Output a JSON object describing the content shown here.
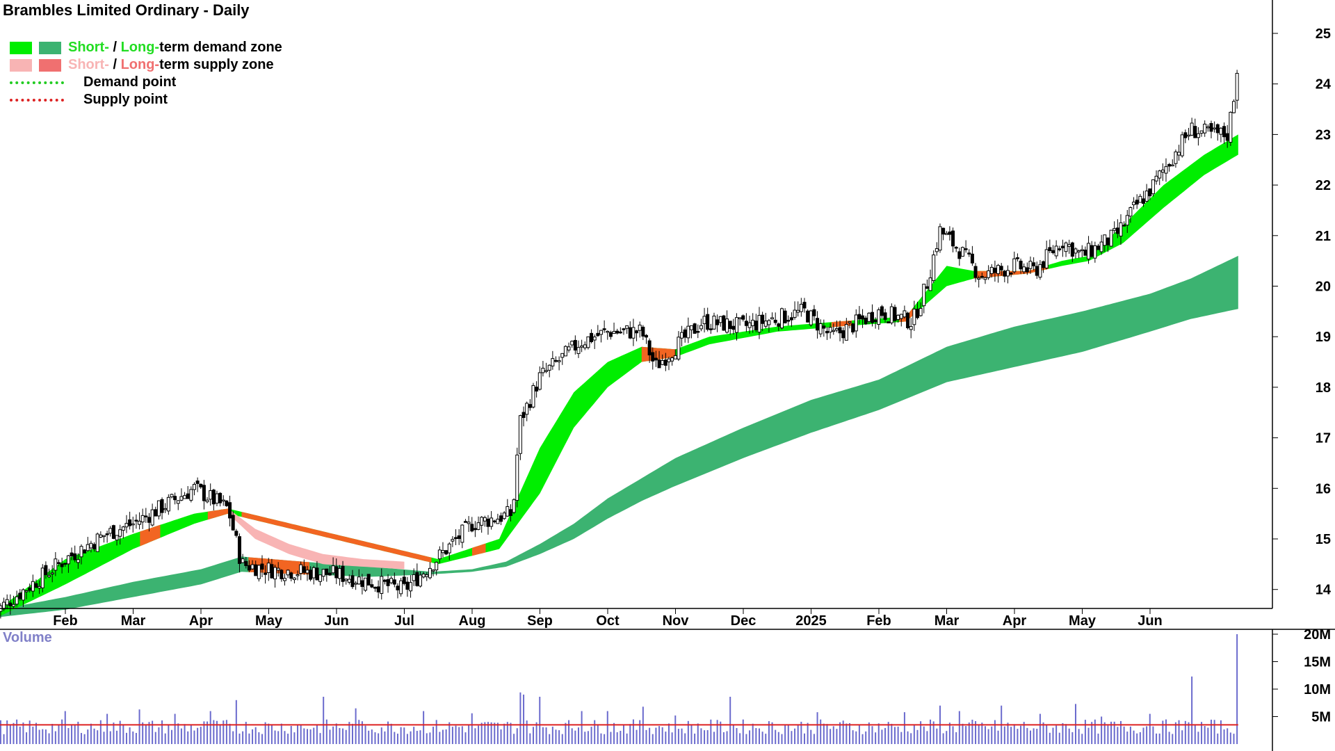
{
  "title": "Brambles Limited Ordinary - Daily",
  "legend": {
    "demand_zone": {
      "short": "Short-",
      "sep": " / ",
      "long": "Long-",
      "rest": "term demand zone"
    },
    "supply_zone": {
      "short": "Short-",
      "sep": " / ",
      "long": "Long-",
      "rest": "term supply zone"
    },
    "demand_point": "Demand point",
    "supply_point": "Supply point"
  },
  "volume_label": "Volume",
  "colors": {
    "short_demand": "#00ee00",
    "long_demand": "#3cb371",
    "short_supply": "#f8b4b4",
    "long_supply": "#f07070",
    "transition": "#f26522",
    "demand_point": "#22cc22",
    "supply_point": "#dd2222",
    "volume_bar": "#6a6acd",
    "volume_avg": "#dd2222"
  },
  "chart_data": [
    {
      "type": "candlestick",
      "title": "Brambles Limited Ordinary - Daily",
      "x_tick_labels": [
        "Feb",
        "Mar",
        "Apr",
        "May",
        "Jun",
        "Jul",
        "Aug",
        "Sep",
        "Oct",
        "Nov",
        "Dec",
        "2025",
        "Feb",
        "Mar",
        "Apr",
        "May",
        "Jun"
      ],
      "y_ticks": [
        14,
        15,
        16,
        17,
        18,
        19,
        20,
        21,
        22,
        23,
        24,
        25
      ],
      "ylim": [
        13.4,
        25.3
      ],
      "grid": false,
      "legend_position": "top-left",
      "close_anchors": [
        {
          "x": 0,
          "y": 13.6
        },
        {
          "x": 1,
          "y": 14.6
        },
        {
          "x": 1.6,
          "y": 15.1
        },
        {
          "x": 2.0,
          "y": 15.3
        },
        {
          "x": 2.9,
          "y": 16.0
        },
        {
          "x": 3.4,
          "y": 15.6
        },
        {
          "x": 3.6,
          "y": 14.5
        },
        {
          "x": 4.0,
          "y": 14.4
        },
        {
          "x": 5.0,
          "y": 14.3
        },
        {
          "x": 6.0,
          "y": 14.0
        },
        {
          "x": 6.4,
          "y": 14.5
        },
        {
          "x": 7.0,
          "y": 15.3
        },
        {
          "x": 7.6,
          "y": 15.5
        },
        {
          "x": 7.7,
          "y": 17.3
        },
        {
          "x": 8.0,
          "y": 18.2
        },
        {
          "x": 8.6,
          "y": 18.9
        },
        {
          "x": 9.0,
          "y": 19.1
        },
        {
          "x": 9.5,
          "y": 19.1
        },
        {
          "x": 9.7,
          "y": 18.4
        },
        {
          "x": 10.0,
          "y": 18.8
        },
        {
          "x": 10.4,
          "y": 19.3
        },
        {
          "x": 11.0,
          "y": 19.2
        },
        {
          "x": 11.9,
          "y": 19.5
        },
        {
          "x": 12.3,
          "y": 19.0
        },
        {
          "x": 13.0,
          "y": 19.5
        },
        {
          "x": 13.5,
          "y": 19.3
        },
        {
          "x": 13.7,
          "y": 20.0
        },
        {
          "x": 13.9,
          "y": 21.1
        },
        {
          "x": 14.2,
          "y": 20.7
        },
        {
          "x": 14.5,
          "y": 20.2
        },
        {
          "x": 15.0,
          "y": 20.4
        },
        {
          "x": 15.3,
          "y": 20.3
        },
        {
          "x": 15.7,
          "y": 20.9
        },
        {
          "x": 16.0,
          "y": 20.6
        },
        {
          "x": 16.5,
          "y": 21.0
        },
        {
          "x": 16.8,
          "y": 21.6
        },
        {
          "x": 17.0,
          "y": 21.9
        },
        {
          "x": 17.6,
          "y": 23.1
        },
        {
          "x": 17.9,
          "y": 23.0
        },
        {
          "x": 18.15,
          "y": 23.0
        },
        {
          "x": 18.25,
          "y": 23.9
        },
        {
          "x": 18.3,
          "y": 24.5
        }
      ],
      "short_demand_zone": {
        "upper": [
          {
            "x": 0,
            "y": 13.6
          },
          {
            "x": 1.0,
            "y": 14.6
          },
          {
            "x": 2.0,
            "y": 15.1
          },
          {
            "x": 2.9,
            "y": 15.5
          },
          {
            "x": 3.4,
            "y": 15.6
          },
          {
            "x": 6.5,
            "y": 14.6
          },
          {
            "x": 7.4,
            "y": 15.0
          },
          {
            "x": 8.0,
            "y": 16.8
          },
          {
            "x": 8.5,
            "y": 17.9
          },
          {
            "x": 9.0,
            "y": 18.5
          },
          {
            "x": 9.5,
            "y": 18.8
          },
          {
            "x": 10.0,
            "y": 18.75
          },
          {
            "x": 10.5,
            "y": 19.0
          },
          {
            "x": 11.5,
            "y": 19.2
          },
          {
            "x": 12.4,
            "y": 19.3
          },
          {
            "x": 13.4,
            "y": 19.4
          },
          {
            "x": 14.0,
            "y": 20.4
          },
          {
            "x": 14.4,
            "y": 20.3
          },
          {
            "x": 15.2,
            "y": 20.3
          },
          {
            "x": 15.7,
            "y": 20.5
          },
          {
            "x": 16.1,
            "y": 20.6
          },
          {
            "x": 16.6,
            "y": 21.2
          },
          {
            "x": 17.2,
            "y": 22.0
          },
          {
            "x": 17.8,
            "y": 22.6
          },
          {
            "x": 18.3,
            "y": 23.0
          }
        ],
        "lower": [
          {
            "x": 0,
            "y": 13.45
          },
          {
            "x": 1.0,
            "y": 14.1
          },
          {
            "x": 2.0,
            "y": 14.8
          },
          {
            "x": 2.9,
            "y": 15.3
          },
          {
            "x": 3.4,
            "y": 15.5
          },
          {
            "x": 6.5,
            "y": 14.5
          },
          {
            "x": 7.4,
            "y": 14.8
          },
          {
            "x": 8.0,
            "y": 15.9
          },
          {
            "x": 8.5,
            "y": 17.2
          },
          {
            "x": 9.0,
            "y": 18.0
          },
          {
            "x": 9.5,
            "y": 18.5
          },
          {
            "x": 10.0,
            "y": 18.6
          },
          {
            "x": 10.5,
            "y": 18.85
          },
          {
            "x": 11.5,
            "y": 19.1
          },
          {
            "x": 12.4,
            "y": 19.2
          },
          {
            "x": 13.4,
            "y": 19.3
          },
          {
            "x": 14.0,
            "y": 20.0
          },
          {
            "x": 14.4,
            "y": 20.15
          },
          {
            "x": 15.2,
            "y": 20.25
          },
          {
            "x": 15.7,
            "y": 20.4
          },
          {
            "x": 16.1,
            "y": 20.5
          },
          {
            "x": 16.6,
            "y": 20.85
          },
          {
            "x": 17.2,
            "y": 21.55
          },
          {
            "x": 17.8,
            "y": 22.2
          },
          {
            "x": 18.3,
            "y": 22.6
          }
        ]
      },
      "long_demand_zone": {
        "upper": [
          {
            "x": 0,
            "y": 13.6
          },
          {
            "x": 1.0,
            "y": 13.85
          },
          {
            "x": 2.0,
            "y": 14.15
          },
          {
            "x": 3.0,
            "y": 14.4
          },
          {
            "x": 3.6,
            "y": 14.65
          },
          {
            "x": 4.5,
            "y": 14.55
          },
          {
            "x": 5.5,
            "y": 14.45
          },
          {
            "x": 6.4,
            "y": 14.35
          },
          {
            "x": 7.0,
            "y": 14.4
          },
          {
            "x": 7.5,
            "y": 14.55
          },
          {
            "x": 8.0,
            "y": 14.9
          },
          {
            "x": 8.5,
            "y": 15.3
          },
          {
            "x": 9.0,
            "y": 15.8
          },
          {
            "x": 9.5,
            "y": 16.2
          },
          {
            "x": 10.0,
            "y": 16.6
          },
          {
            "x": 11.0,
            "y": 17.2
          },
          {
            "x": 12.0,
            "y": 17.75
          },
          {
            "x": 13.0,
            "y": 18.15
          },
          {
            "x": 14.0,
            "y": 18.8
          },
          {
            "x": 15.0,
            "y": 19.2
          },
          {
            "x": 16.0,
            "y": 19.5
          },
          {
            "x": 17.0,
            "y": 19.85
          },
          {
            "x": 17.6,
            "y": 20.15
          },
          {
            "x": 18.3,
            "y": 20.6
          }
        ],
        "lower": [
          {
            "x": 0,
            "y": 13.45
          },
          {
            "x": 1.0,
            "y": 13.6
          },
          {
            "x": 2.0,
            "y": 13.85
          },
          {
            "x": 3.0,
            "y": 14.1
          },
          {
            "x": 3.6,
            "y": 14.35
          },
          {
            "x": 4.5,
            "y": 14.3
          },
          {
            "x": 5.5,
            "y": 14.25
          },
          {
            "x": 6.4,
            "y": 14.3
          },
          {
            "x": 7.0,
            "y": 14.35
          },
          {
            "x": 7.5,
            "y": 14.45
          },
          {
            "x": 8.0,
            "y": 14.7
          },
          {
            "x": 8.5,
            "y": 15.0
          },
          {
            "x": 9.0,
            "y": 15.4
          },
          {
            "x": 9.5,
            "y": 15.75
          },
          {
            "x": 10.0,
            "y": 16.05
          },
          {
            "x": 11.0,
            "y": 16.6
          },
          {
            "x": 12.0,
            "y": 17.1
          },
          {
            "x": 13.0,
            "y": 17.55
          },
          {
            "x": 14.0,
            "y": 18.1
          },
          {
            "x": 15.0,
            "y": 18.4
          },
          {
            "x": 16.0,
            "y": 18.7
          },
          {
            "x": 17.0,
            "y": 19.1
          },
          {
            "x": 17.6,
            "y": 19.35
          },
          {
            "x": 18.3,
            "y": 19.55
          }
        ]
      },
      "short_supply_zone": {
        "upper": [
          {
            "x": 3.4,
            "y": 15.6
          },
          {
            "x": 3.8,
            "y": 15.2
          },
          {
            "x": 4.3,
            "y": 14.9
          },
          {
            "x": 4.8,
            "y": 14.7
          },
          {
            "x": 5.4,
            "y": 14.6
          },
          {
            "x": 6.0,
            "y": 14.55
          }
        ],
        "lower": [
          {
            "x": 3.4,
            "y": 15.5
          },
          {
            "x": 3.8,
            "y": 15.0
          },
          {
            "x": 4.3,
            "y": 14.7
          },
          {
            "x": 4.8,
            "y": 14.5
          },
          {
            "x": 5.4,
            "y": 14.45
          },
          {
            "x": 6.0,
            "y": 14.4
          }
        ]
      },
      "transition_zones": [
        {
          "from": 2.1,
          "to": 2.4
        },
        {
          "from": 3.1,
          "to": 3.4
        },
        {
          "from": 3.6,
          "to": 6.4
        },
        {
          "from": 7.0,
          "to": 7.2
        },
        {
          "from": 9.5,
          "to": 10.0
        },
        {
          "from": 12.3,
          "to": 12.6
        },
        {
          "from": 13.3,
          "to": 13.5
        },
        {
          "from": 14.4,
          "to": 15.5
        }
      ]
    },
    {
      "type": "bar",
      "title": "Volume",
      "y_ticks": [
        5000000,
        10000000,
        15000000,
        20000000
      ],
      "y_tick_labels": [
        "5M",
        "10M",
        "15M",
        "20M"
      ],
      "ylim": [
        0,
        21000000
      ],
      "baseline_volume": 3000000,
      "average_volume": 3500000,
      "spikes": [
        {
          "x": 1.0,
          "value": 6000000
        },
        {
          "x": 1.6,
          "value": 5500000
        },
        {
          "x": 2.1,
          "value": 6300000
        },
        {
          "x": 2.6,
          "value": 5500000
        },
        {
          "x": 3.15,
          "value": 6000000
        },
        {
          "x": 3.5,
          "value": 8000000
        },
        {
          "x": 4.8,
          "value": 8600000
        },
        {
          "x": 5.3,
          "value": 6500000
        },
        {
          "x": 6.3,
          "value": 6000000
        },
        {
          "x": 7.0,
          "value": 5600000
        },
        {
          "x": 7.7,
          "value": 9400000
        },
        {
          "x": 7.75,
          "value": 9000000
        },
        {
          "x": 8.0,
          "value": 8600000
        },
        {
          "x": 8.6,
          "value": 6000000
        },
        {
          "x": 9.0,
          "value": 6000000
        },
        {
          "x": 9.5,
          "value": 6800000
        },
        {
          "x": 10.0,
          "value": 5200000
        },
        {
          "x": 10.8,
          "value": 8600000
        },
        {
          "x": 12.1,
          "value": 5800000
        },
        {
          "x": 13.4,
          "value": 5800000
        },
        {
          "x": 13.9,
          "value": 7000000
        },
        {
          "x": 14.2,
          "value": 6000000
        },
        {
          "x": 14.8,
          "value": 7000000
        },
        {
          "x": 15.4,
          "value": 5500000
        },
        {
          "x": 15.9,
          "value": 7300000
        },
        {
          "x": 16.3,
          "value": 5000000
        },
        {
          "x": 17.0,
          "value": 5500000
        },
        {
          "x": 17.6,
          "value": 12300000
        },
        {
          "x": 18.3,
          "value": 20000000
        }
      ]
    }
  ]
}
